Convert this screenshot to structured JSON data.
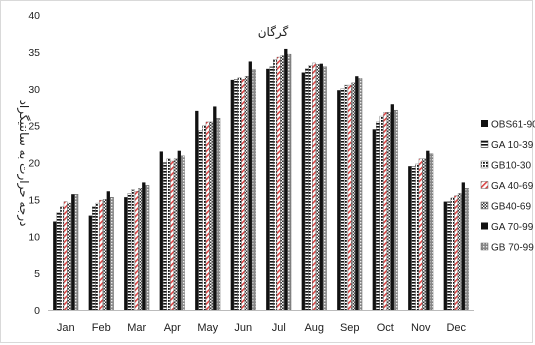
{
  "chart_data": {
    "type": "bar",
    "title": "گرگان",
    "ylabel": "درجه حرارت به سانتیگراد",
    "xlabel": "",
    "ylim": [
      0,
      40
    ],
    "yticks": [
      0,
      5,
      10,
      15,
      20,
      25,
      30,
      35,
      40
    ],
    "grid": false,
    "legend_position": "right",
    "categories": [
      "Jan",
      "Feb",
      "Mar",
      "Apr",
      "May",
      "Jun",
      "Jul",
      "Aug",
      "Sep",
      "Oct",
      "Nov",
      "Dec"
    ],
    "series": [
      {
        "name": "OBS61-90",
        "values": [
          12.0,
          12.8,
          15.3,
          21.5,
          27.0,
          31.2,
          32.7,
          32.2,
          29.8,
          24.5,
          19.5,
          14.7
        ]
      },
      {
        "name": "GA 10-39",
        "values": [
          13.2,
          14.0,
          15.8,
          20.0,
          24.3,
          31.3,
          33.0,
          32.7,
          30.0,
          25.5,
          19.5,
          14.7
        ]
      },
      {
        "name": "GB10-30",
        "values": [
          14.0,
          14.5,
          16.3,
          20.5,
          25.0,
          31.5,
          34.0,
          33.2,
          30.5,
          26.3,
          19.8,
          15.2
        ]
      },
      {
        "name": "GA 40-69",
        "values": [
          14.7,
          14.9,
          16.1,
          20.2,
          25.5,
          31.3,
          34.3,
          33.5,
          30.5,
          26.8,
          20.5,
          15.5
        ]
      },
      {
        "name": "GB40-69",
        "values": [
          14.5,
          15.0,
          16.5,
          20.5,
          25.5,
          31.7,
          34.5,
          33.3,
          30.8,
          26.8,
          20.5,
          15.8
        ]
      },
      {
        "name": "GA 70-99",
        "values": [
          15.7,
          16.1,
          17.3,
          21.6,
          27.6,
          33.7,
          35.4,
          33.4,
          31.7,
          27.9,
          21.6,
          17.3
        ]
      },
      {
        "name": "GB 70-99",
        "values": [
          15.7,
          15.3,
          16.9,
          20.9,
          26.0,
          32.6,
          34.7,
          33.0,
          31.4,
          27.1,
          21.2,
          16.5
        ]
      }
    ],
    "legend_labels": [
      "OBS61-90",
      "GA 10-39",
      "GB10-30",
      "GA 40-69",
      "GB40-69",
      "GA 70-99",
      "GB 70-99"
    ],
    "series_style": [
      "solid",
      "hlines",
      "dots",
      "redstripe",
      "check",
      "solid",
      "grid"
    ]
  }
}
